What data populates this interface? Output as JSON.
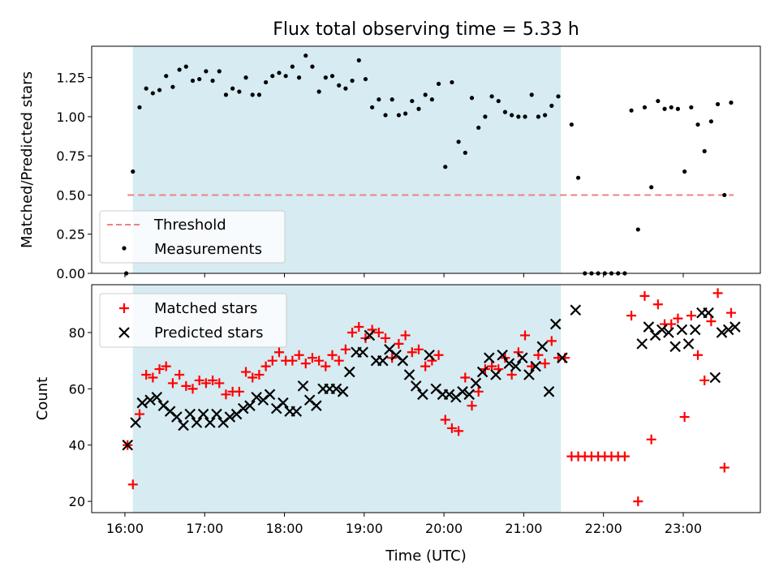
{
  "title": "Flux total observing time = 5.33 h",
  "colors": {
    "shade": "#add8e6",
    "threshold": "#f08080",
    "matched": "#ff0000",
    "predicted": "#000000",
    "measure": "#000000"
  },
  "chart_data": [
    {
      "type": "scatter",
      "ylabel": "Matched/Predicted stars",
      "ylim": [
        0,
        1.45
      ],
      "yticks": [
        "0.00",
        "0.25",
        "0.50",
        "0.75",
        "1.00",
        "1.25"
      ],
      "xlim": [
        "15:35",
        "23:58"
      ],
      "grid": false,
      "legend_position": "lower-left",
      "shaded_span": [
        "16:06",
        "21:28"
      ],
      "threshold": {
        "name": "Threshold",
        "value": 0.5,
        "x": [
          "16:02",
          "23:38"
        ]
      },
      "series": [
        {
          "name": "Measurements",
          "x": [
            "16:01",
            "16:06",
            "16:11",
            "16:16",
            "16:21",
            "16:26",
            "16:31",
            "16:36",
            "16:41",
            "16:46",
            "16:51",
            "16:56",
            "17:01",
            "17:06",
            "17:11",
            "17:16",
            "17:21",
            "17:26",
            "17:31",
            "17:36",
            "17:41",
            "17:46",
            "17:51",
            "17:56",
            "18:01",
            "18:06",
            "18:11",
            "18:16",
            "18:21",
            "18:26",
            "18:31",
            "18:36",
            "18:41",
            "18:46",
            "18:51",
            "18:56",
            "19:01",
            "19:06",
            "19:11",
            "19:16",
            "19:21",
            "19:26",
            "19:31",
            "19:36",
            "19:41",
            "19:46",
            "19:51",
            "19:56",
            "20:01",
            "20:06",
            "20:11",
            "20:16",
            "20:21",
            "20:26",
            "20:31",
            "20:36",
            "20:41",
            "20:46",
            "20:51",
            "20:56",
            "21:01",
            "21:06",
            "21:11",
            "21:16",
            "21:21",
            "21:26",
            "21:36",
            "21:41",
            "21:46",
            "21:51",
            "21:56",
            "22:01",
            "22:06",
            "22:11",
            "22:16",
            "22:21",
            "22:26",
            "22:31",
            "22:36",
            "22:41",
            "22:46",
            "22:51",
            "22:56",
            "23:01",
            "23:06",
            "23:11",
            "23:16",
            "23:21",
            "23:26",
            "23:31",
            "23:36"
          ],
          "y": [
            0.0,
            0.65,
            1.06,
            1.18,
            1.15,
            1.17,
            1.26,
            1.19,
            1.3,
            1.32,
            1.23,
            1.24,
            1.29,
            1.23,
            1.29,
            1.14,
            1.18,
            1.16,
            1.25,
            1.14,
            1.14,
            1.22,
            1.26,
            1.28,
            1.26,
            1.32,
            1.25,
            1.39,
            1.32,
            1.16,
            1.25,
            1.26,
            1.2,
            1.18,
            1.23,
            1.36,
            1.24,
            1.06,
            1.11,
            1.01,
            1.11,
            1.01,
            1.02,
            1.1,
            1.05,
            1.14,
            1.11,
            1.21,
            0.68,
            1.22,
            0.84,
            0.77,
            1.12,
            0.93,
            1.0,
            1.13,
            1.1,
            1.03,
            1.01,
            1.0,
            1.0,
            1.14,
            1.0,
            1.01,
            1.07,
            1.13,
            0.95,
            0.61,
            0.0,
            0.0,
            0.0,
            0.0,
            0.0,
            0.0,
            0.0,
            1.04,
            0.28,
            1.06,
            0.55,
            1.1,
            1.05,
            1.06,
            1.05,
            0.65,
            1.06,
            0.95,
            0.78,
            0.97,
            1.08,
            0.5,
            1.09
          ]
        }
      ]
    },
    {
      "type": "scatter",
      "xlabel": "Time (UTC)",
      "ylabel": "Count",
      "ylim": [
        16,
        97
      ],
      "yticks": [
        "20",
        "40",
        "60",
        "80"
      ],
      "xlim": [
        "15:35",
        "23:58"
      ],
      "xticks": [
        "16:00",
        "17:00",
        "18:00",
        "19:00",
        "20:00",
        "21:00",
        "22:00",
        "23:00"
      ],
      "grid": false,
      "legend_position": "upper-left",
      "shaded_span": [
        "16:06",
        "21:28"
      ],
      "series": [
        {
          "name": "Matched stars",
          "marker": "+",
          "x": [
            "16:02",
            "16:06",
            "16:11",
            "16:16",
            "16:21",
            "16:26",
            "16:31",
            "16:36",
            "16:41",
            "16:46",
            "16:51",
            "16:56",
            "17:01",
            "17:06",
            "17:11",
            "17:16",
            "17:21",
            "17:26",
            "17:31",
            "17:36",
            "17:41",
            "17:46",
            "17:51",
            "17:56",
            "18:01",
            "18:06",
            "18:11",
            "18:16",
            "18:21",
            "18:26",
            "18:31",
            "18:36",
            "18:41",
            "18:46",
            "18:51",
            "18:56",
            "19:01",
            "19:06",
            "19:11",
            "19:16",
            "19:21",
            "19:26",
            "19:31",
            "19:36",
            "19:41",
            "19:46",
            "19:51",
            "19:56",
            "20:01",
            "20:06",
            "20:11",
            "20:16",
            "20:21",
            "20:26",
            "20:31",
            "20:36",
            "20:41",
            "20:46",
            "20:51",
            "20:56",
            "21:01",
            "21:06",
            "21:11",
            "21:16",
            "21:21",
            "21:26",
            "21:31",
            "21:36",
            "21:41",
            "21:46",
            "21:51",
            "21:56",
            "22:01",
            "22:06",
            "22:11",
            "22:16",
            "22:21",
            "22:26",
            "22:31",
            "22:36",
            "22:41",
            "22:46",
            "22:51",
            "22:56",
            "23:01",
            "23:06",
            "23:11",
            "23:16",
            "23:21",
            "23:26",
            "23:31",
            "23:36"
          ],
          "y": [
            40,
            26,
            51,
            65,
            64,
            67,
            68,
            62,
            65,
            61,
            60,
            63,
            62,
            63,
            62,
            58,
            59,
            59,
            66,
            64,
            65,
            68,
            70,
            73,
            70,
            70,
            72,
            69,
            71,
            70,
            68,
            72,
            70,
            74,
            80,
            82,
            78,
            81,
            80,
            78,
            71,
            76,
            79,
            73,
            74,
            68,
            70,
            72,
            49,
            46,
            45,
            64,
            54,
            59,
            67,
            68,
            67,
            71,
            65,
            73,
            79,
            68,
            72,
            69,
            77,
            71,
            71,
            36,
            36,
            36,
            36,
            36,
            36,
            36,
            36,
            36,
            86,
            20,
            93,
            42,
            90,
            83,
            83,
            85,
            50,
            86,
            72,
            63,
            84,
            94,
            32,
            87
          ]
        },
        {
          "name": "Predicted stars",
          "marker": "x",
          "x": [
            "16:02",
            "16:08",
            "16:13",
            "16:19",
            "16:24",
            "16:29",
            "16:34",
            "16:39",
            "16:44",
            "16:49",
            "16:54",
            "16:59",
            "17:04",
            "17:09",
            "17:14",
            "17:19",
            "17:24",
            "17:29",
            "17:34",
            "17:39",
            "17:44",
            "17:49",
            "17:54",
            "17:59",
            "18:04",
            "18:09",
            "18:14",
            "18:19",
            "18:24",
            "18:29",
            "18:34",
            "18:39",
            "18:44",
            "18:49",
            "18:54",
            "18:59",
            "19:04",
            "19:09",
            "19:14",
            "19:19",
            "19:24",
            "19:29",
            "19:34",
            "19:39",
            "19:44",
            "19:49",
            "19:54",
            "19:59",
            "20:04",
            "20:09",
            "20:14",
            "20:19",
            "20:24",
            "20:29",
            "20:34",
            "20:39",
            "20:44",
            "20:49",
            "20:54",
            "20:59",
            "21:04",
            "21:09",
            "21:14",
            "21:19",
            "21:24",
            "21:29",
            "21:39",
            "22:29",
            "22:34",
            "22:39",
            "22:44",
            "22:49",
            "22:54",
            "22:59",
            "23:04",
            "23:09",
            "23:14",
            "23:19",
            "23:24",
            "23:29",
            "23:34",
            "23:39"
          ],
          "y": [
            40,
            48,
            55,
            56,
            57,
            54,
            52,
            50,
            47,
            51,
            48,
            51,
            48,
            51,
            48,
            50,
            51,
            53,
            54,
            57,
            56,
            58,
            53,
            55,
            52,
            52,
            61,
            56,
            54,
            60,
            60,
            60,
            59,
            66,
            73,
            73,
            79,
            70,
            70,
            74,
            72,
            70,
            65,
            61,
            58,
            72,
            60,
            58,
            58,
            57,
            59,
            58,
            62,
            66,
            71,
            65,
            72,
            69,
            68,
            71,
            65,
            68,
            75,
            59,
            83,
            71,
            88,
            76,
            82,
            79,
            81,
            80,
            75,
            81,
            76,
            81,
            87,
            87,
            64,
            80,
            81,
            82
          ]
        }
      ]
    }
  ]
}
